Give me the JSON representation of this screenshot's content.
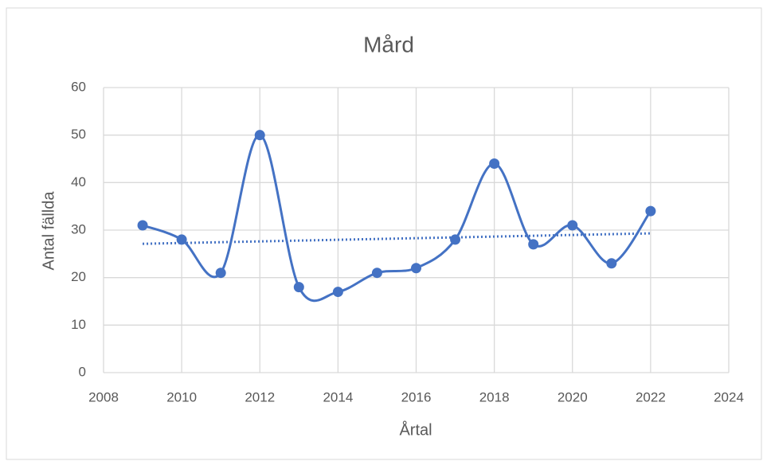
{
  "chart_data": {
    "type": "scatter",
    "title": "Mård",
    "x_label": "Årtal",
    "y_label": "Antal fällda",
    "x": [
      2009,
      2010,
      2011,
      2012,
      2013,
      2014,
      2015,
      2016,
      2017,
      2018,
      2019,
      2020,
      2021,
      2022
    ],
    "values": [
      31,
      28,
      21,
      50,
      18,
      17,
      21,
      22,
      28,
      44,
      27,
      31,
      23,
      34
    ],
    "color": "#4472c4",
    "smooth": true,
    "trendline": "linear",
    "xlim": [
      2008,
      2024
    ],
    "xticks": [
      2008,
      2010,
      2012,
      2014,
      2016,
      2018,
      2020,
      2022,
      2024
    ],
    "ylim": [
      0,
      60
    ],
    "yticks": [
      0,
      10,
      20,
      30,
      40,
      50,
      60
    ],
    "grid": true
  }
}
